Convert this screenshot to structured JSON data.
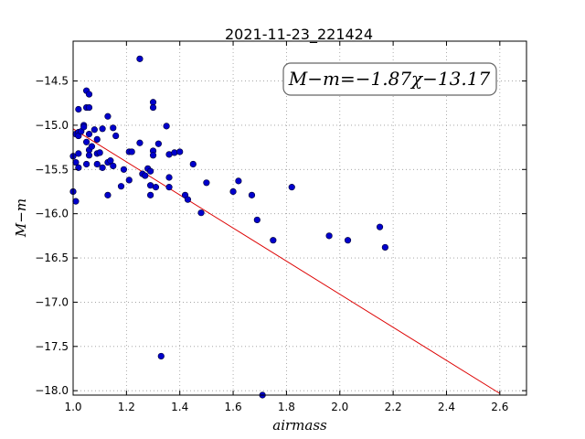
{
  "chart_data": {
    "type": "scatter",
    "title": "2021-11-23_221424",
    "xlabel": "airmass",
    "ylabel": "M−m",
    "xlim": [
      1.0,
      2.7
    ],
    "ylim": [
      -18.05,
      -14.05
    ],
    "y_inverted": true,
    "grid": true,
    "x_ticks": [
      1.0,
      1.2,
      1.4,
      1.6,
      1.8,
      2.0,
      2.2,
      2.4,
      2.6
    ],
    "x_tick_labels": [
      "1.0",
      "1.2",
      "1.4",
      "1.6",
      "1.8",
      "2.0",
      "2.2",
      "2.4",
      "2.6"
    ],
    "y_ticks": [
      -14.5,
      -15.0,
      -15.5,
      -16.0,
      -16.5,
      -17.0,
      -17.5,
      -18.0
    ],
    "y_tick_labels": [
      "−14.5",
      "−15.0",
      "−15.5",
      "−16.0",
      "−16.5",
      "−17.0",
      "−17.5",
      "−18.0"
    ],
    "annotation": "M−m=−1.87χ−13.17",
    "colors": {
      "points": "#0000cc",
      "fit_line": "#dd0000"
    },
    "fit": {
      "slope": -1.87,
      "intercept": -13.17,
      "x_range": [
        1.0,
        2.6
      ]
    },
    "points": [
      {
        "x": 1.0,
        "y": -15.75
      },
      {
        "x": 1.01,
        "y": -15.86
      },
      {
        "x": 1.0,
        "y": -15.35
      },
      {
        "x": 1.01,
        "y": -15.42
      },
      {
        "x": 1.02,
        "y": -15.32
      },
      {
        "x": 1.02,
        "y": -15.48
      },
      {
        "x": 1.01,
        "y": -15.1
      },
      {
        "x": 1.02,
        "y": -15.08
      },
      {
        "x": 1.02,
        "y": -15.12
      },
      {
        "x": 1.02,
        "y": -14.82
      },
      {
        "x": 1.03,
        "y": -15.07
      },
      {
        "x": 1.04,
        "y": -15.0
      },
      {
        "x": 1.04,
        "y": -15.02
      },
      {
        "x": 1.05,
        "y": -15.44
      },
      {
        "x": 1.05,
        "y": -15.19
      },
      {
        "x": 1.05,
        "y": -14.61
      },
      {
        "x": 1.06,
        "y": -14.65
      },
      {
        "x": 1.05,
        "y": -14.8
      },
      {
        "x": 1.06,
        "y": -14.8
      },
      {
        "x": 1.06,
        "y": -15.1
      },
      {
        "x": 1.06,
        "y": -15.28
      },
      {
        "x": 1.06,
        "y": -15.34
      },
      {
        "x": 1.07,
        "y": -15.24
      },
      {
        "x": 1.08,
        "y": -15.05
      },
      {
        "x": 1.09,
        "y": -15.44
      },
      {
        "x": 1.09,
        "y": -15.32
      },
      {
        "x": 1.1,
        "y": -15.31
      },
      {
        "x": 1.09,
        "y": -15.16
      },
      {
        "x": 1.11,
        "y": -15.04
      },
      {
        "x": 1.11,
        "y": -15.48
      },
      {
        "x": 1.13,
        "y": -14.9
      },
      {
        "x": 1.13,
        "y": -15.42
      },
      {
        "x": 1.14,
        "y": -15.4
      },
      {
        "x": 1.15,
        "y": -15.46
      },
      {
        "x": 1.13,
        "y": -15.79
      },
      {
        "x": 1.15,
        "y": -15.03
      },
      {
        "x": 1.16,
        "y": -15.12
      },
      {
        "x": 1.18,
        "y": -15.69
      },
      {
        "x": 1.19,
        "y": -15.5
      },
      {
        "x": 1.21,
        "y": -15.3
      },
      {
        "x": 1.22,
        "y": -15.3
      },
      {
        "x": 1.21,
        "y": -15.62
      },
      {
        "x": 1.25,
        "y": -14.25
      },
      {
        "x": 1.25,
        "y": -15.2
      },
      {
        "x": 1.26,
        "y": -15.55
      },
      {
        "x": 1.27,
        "y": -15.57
      },
      {
        "x": 1.28,
        "y": -15.49
      },
      {
        "x": 1.29,
        "y": -15.52
      },
      {
        "x": 1.29,
        "y": -15.68
      },
      {
        "x": 1.29,
        "y": -15.79
      },
      {
        "x": 1.3,
        "y": -15.29
      },
      {
        "x": 1.3,
        "y": -15.34
      },
      {
        "x": 1.3,
        "y": -14.74
      },
      {
        "x": 1.3,
        "y": -14.8
      },
      {
        "x": 1.31,
        "y": -15.7
      },
      {
        "x": 1.32,
        "y": -15.21
      },
      {
        "x": 1.33,
        "y": -17.61
      },
      {
        "x": 1.35,
        "y": -15.01
      },
      {
        "x": 1.36,
        "y": -15.33
      },
      {
        "x": 1.36,
        "y": -15.59
      },
      {
        "x": 1.36,
        "y": -15.7
      },
      {
        "x": 1.38,
        "y": -15.31
      },
      {
        "x": 1.4,
        "y": -15.3
      },
      {
        "x": 1.42,
        "y": -15.79
      },
      {
        "x": 1.43,
        "y": -15.84
      },
      {
        "x": 1.45,
        "y": -15.44
      },
      {
        "x": 1.48,
        "y": -15.99
      },
      {
        "x": 1.5,
        "y": -15.65
      },
      {
        "x": 1.6,
        "y": -15.75
      },
      {
        "x": 1.62,
        "y": -15.63
      },
      {
        "x": 1.67,
        "y": -15.79
      },
      {
        "x": 1.69,
        "y": -16.07
      },
      {
        "x": 1.71,
        "y": -18.05
      },
      {
        "x": 1.75,
        "y": -16.3
      },
      {
        "x": 1.82,
        "y": -15.7
      },
      {
        "x": 1.96,
        "y": -16.25
      },
      {
        "x": 2.03,
        "y": -16.3
      },
      {
        "x": 2.15,
        "y": -16.15
      },
      {
        "x": 2.17,
        "y": -16.38
      }
    ]
  }
}
